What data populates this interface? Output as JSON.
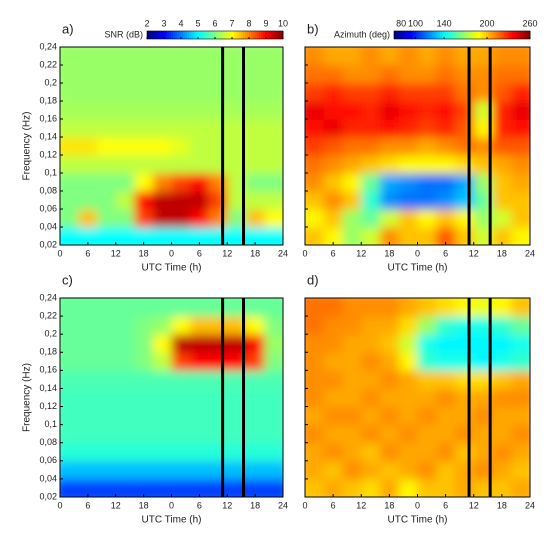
{
  "chart_data": [
    {
      "type": "heatmap",
      "panel": "a)",
      "xlabel": "UTC Time (h)",
      "ylabel": "Frequency (Hz)",
      "colorbar_label": "SNR (dB)",
      "cmap": "jet",
      "clim": [
        2,
        10
      ],
      "colorbar_ticks": [
        2,
        3,
        4,
        5,
        6,
        7,
        8,
        9,
        10
      ],
      "xlim": [
        0,
        48
      ],
      "ylim": [
        0.02,
        0.24
      ],
      "xticks": [
        0,
        6,
        12,
        18,
        {
          "value": 24,
          "label": "0"
        },
        {
          "value": 30,
          "label": "6"
        },
        {
          "value": 36,
          "label": "12"
        },
        {
          "value": 42,
          "label": "18"
        },
        {
          "value": 48,
          "label": "24"
        }
      ],
      "yticks": [
        {
          "value": 0.02,
          "label": "0,02"
        },
        {
          "value": 0.04,
          "label": "0,04"
        },
        {
          "value": 0.06,
          "label": "0,06"
        },
        {
          "value": 0.08,
          "label": "0,08"
        },
        {
          "value": 0.1,
          "label": "0,1"
        },
        {
          "value": 0.12,
          "label": "0,12"
        },
        {
          "value": 0.14,
          "label": "0,14"
        },
        {
          "value": 0.16,
          "label": "0,16"
        },
        {
          "value": 0.18,
          "label": "0,18"
        },
        {
          "value": 0.2,
          "label": "0,2"
        },
        {
          "value": 0.22,
          "label": "0,22"
        },
        {
          "value": 0.24,
          "label": "0,24"
        }
      ],
      "vlines": [
        35,
        39.5
      ],
      "x": [
        2,
        6,
        10,
        14,
        18,
        22,
        26,
        30,
        34,
        38,
        42,
        46
      ],
      "y": [
        0.03,
        0.05,
        0.07,
        0.09,
        0.11,
        0.13,
        0.15,
        0.17,
        0.19,
        0.21,
        0.23
      ],
      "z": [
        [
          5,
          5,
          5,
          5,
          5,
          5,
          5,
          5,
          5,
          5,
          5,
          5
        ],
        [
          6,
          7.5,
          6,
          6,
          8.5,
          9.5,
          9.5,
          9,
          8,
          6,
          7.5,
          7
        ],
        [
          6,
          6,
          6,
          6.5,
          9,
          9.5,
          9.5,
          9.5,
          8.5,
          6.5,
          6.5,
          6.5
        ],
        [
          6,
          6,
          6,
          6,
          7,
          8,
          8.5,
          9,
          8,
          6.5,
          6,
          6
        ],
        [
          6.5,
          6.5,
          6.5,
          6.5,
          6.5,
          6.5,
          6.5,
          6.5,
          6.5,
          6.5,
          6.5,
          6.5
        ],
        [
          7.2,
          7.2,
          7,
          7,
          7,
          7,
          6.8,
          6.5,
          6.5,
          6.5,
          6.5,
          6.5
        ],
        [
          6.5,
          6.5,
          6.5,
          6.5,
          6.5,
          6.5,
          6.5,
          6.5,
          6.5,
          6.5,
          6.5,
          6.5
        ],
        [
          6.3,
          6.3,
          6.3,
          6.3,
          6.3,
          6.3,
          6.3,
          6.3,
          6.3,
          6.3,
          6.3,
          6.3
        ],
        [
          6.2,
          6.2,
          6.2,
          6.2,
          6.2,
          6.2,
          6.2,
          6.2,
          6.2,
          6.2,
          6.2,
          6.2
        ],
        [
          6.2,
          6.2,
          6.2,
          6.2,
          6.2,
          6.2,
          6.2,
          6.2,
          6.2,
          6.2,
          6.2,
          6.2
        ],
        [
          6.2,
          6.2,
          6.2,
          6.2,
          6.2,
          6.2,
          6.2,
          6.2,
          6.2,
          6.2,
          6.2,
          6.2
        ]
      ]
    },
    {
      "type": "heatmap",
      "panel": "b)",
      "xlabel": "UTC Time (h)",
      "colorbar_label": "Azimuth (deg)",
      "cmap": "jet",
      "clim": [
        70,
        260
      ],
      "colorbar_ticks": [
        80,
        100,
        140,
        200,
        260
      ],
      "xlim": [
        0,
        48
      ],
      "ylim": [
        0.02,
        0.24
      ],
      "xticks": [
        0,
        6,
        12,
        18,
        {
          "value": 24,
          "label": "0"
        },
        {
          "value": 30,
          "label": "6"
        },
        {
          "value": 36,
          "label": "12"
        },
        {
          "value": 42,
          "label": "18"
        },
        {
          "value": 48,
          "label": "24"
        }
      ],
      "yticks": [
        0.02,
        0.04,
        0.06,
        0.08,
        0.1,
        0.12,
        0.14,
        0.16,
        0.18,
        0.2,
        0.22,
        0.24
      ],
      "vlines": [
        35,
        39.5
      ],
      "x": [
        2,
        6,
        10,
        14,
        18,
        22,
        26,
        30,
        34,
        38,
        42,
        46
      ],
      "y": [
        0.03,
        0.05,
        0.07,
        0.09,
        0.11,
        0.13,
        0.15,
        0.17,
        0.19,
        0.21,
        0.23
      ],
      "z": [
        [
          200,
          190,
          170,
          180,
          210,
          200,
          200,
          220,
          200,
          180,
          200,
          190
        ],
        [
          190,
          200,
          170,
          160,
          180,
          200,
          190,
          200,
          190,
          170,
          180,
          200
        ],
        [
          200,
          210,
          200,
          150,
          120,
          115,
          115,
          120,
          130,
          160,
          200,
          200
        ],
        [
          210,
          200,
          190,
          160,
          125,
          120,
          115,
          115,
          125,
          170,
          200,
          205
        ],
        [
          215,
          210,
          205,
          200,
          195,
          190,
          190,
          190,
          195,
          200,
          205,
          210
        ],
        [
          225,
          220,
          215,
          215,
          210,
          210,
          205,
          210,
          215,
          210,
          220,
          220
        ],
        [
          235,
          240,
          230,
          230,
          235,
          230,
          225,
          230,
          220,
          190,
          230,
          235
        ],
        [
          240,
          235,
          235,
          230,
          240,
          235,
          230,
          235,
          225,
          180,
          230,
          240
        ],
        [
          225,
          230,
          225,
          225,
          230,
          225,
          225,
          225,
          215,
          210,
          220,
          230
        ],
        [
          215,
          215,
          210,
          210,
          215,
          210,
          210,
          215,
          210,
          210,
          215,
          215
        ],
        [
          210,
          205,
          205,
          210,
          205,
          210,
          205,
          210,
          205,
          205,
          210,
          210
        ]
      ]
    },
    {
      "type": "heatmap",
      "panel": "c)",
      "xlabel": "UTC Time (h)",
      "ylabel": "Frequency (Hz)",
      "cmap": "jet",
      "clim": [
        2,
        10
      ],
      "xlim": [
        0,
        48
      ],
      "ylim": [
        0.02,
        0.24
      ],
      "xticks": [
        0,
        6,
        12,
        18,
        {
          "value": 24,
          "label": "0"
        },
        {
          "value": 30,
          "label": "6"
        },
        {
          "value": 36,
          "label": "12"
        },
        {
          "value": 42,
          "label": "18"
        },
        {
          "value": 48,
          "label": "24"
        }
      ],
      "yticks": [
        {
          "value": 0.02,
          "label": "0,02"
        },
        {
          "value": 0.04,
          "label": "0,04"
        },
        {
          "value": 0.06,
          "label": "0,06"
        },
        {
          "value": 0.08,
          "label": "0,08"
        },
        {
          "value": 0.1,
          "label": "0,1"
        },
        {
          "value": 0.12,
          "label": "0,12"
        },
        {
          "value": 0.14,
          "label": "0,14"
        },
        {
          "value": 0.16,
          "label": "0,16"
        },
        {
          "value": 0.18,
          "label": "0,18"
        },
        {
          "value": 0.2,
          "label": "0,2"
        },
        {
          "value": 0.22,
          "label": "0,22"
        },
        {
          "value": 0.24,
          "label": "0,24"
        }
      ],
      "vlines": [
        35,
        39.5
      ],
      "x": [
        2,
        6,
        10,
        14,
        18,
        22,
        26,
        30,
        34,
        38,
        42,
        46
      ],
      "y": [
        0.03,
        0.05,
        0.07,
        0.09,
        0.11,
        0.13,
        0.15,
        0.17,
        0.19,
        0.21,
        0.23
      ],
      "z": [
        [
          3.5,
          3.5,
          3.5,
          3.5,
          3.5,
          3.5,
          3.5,
          3.5,
          3.5,
          3.5,
          3.5,
          3.5
        ],
        [
          4.5,
          4.5,
          4.5,
          4.5,
          4.5,
          4.5,
          4.5,
          4.5,
          4.5,
          4.5,
          4.5,
          4.5
        ],
        [
          5.3,
          5.3,
          5.3,
          5.3,
          5.3,
          5.3,
          5.3,
          5.3,
          5.3,
          5.3,
          5.3,
          5.3
        ],
        [
          5.5,
          5.5,
          5.5,
          5.5,
          5.5,
          5.5,
          5.5,
          5.5,
          5.5,
          5.5,
          5.5,
          5.5
        ],
        [
          5.5,
          5.5,
          5.5,
          5.5,
          5.5,
          5.5,
          5.5,
          5.5,
          5.5,
          5.5,
          5.5,
          5.5
        ],
        [
          5.5,
          5.5,
          5.5,
          5.5,
          5.5,
          5.5,
          5.5,
          5.5,
          5.5,
          5.5,
          5.5,
          5.5
        ],
        [
          5.6,
          5.6,
          5.6,
          5.6,
          5.6,
          5.6,
          5.6,
          5.6,
          5.6,
          5.6,
          5.6,
          5.6
        ],
        [
          5.8,
          5.8,
          5.8,
          5.8,
          6,
          6.5,
          8.5,
          9,
          9,
          9,
          8.5,
          6
        ],
        [
          5.8,
          5.8,
          5.8,
          5.8,
          6,
          7,
          9.5,
          9.5,
          9.5,
          9.5,
          9,
          6.2
        ],
        [
          5.8,
          5.8,
          5.8,
          5.8,
          6,
          6.2,
          7,
          7.5,
          7.5,
          7.5,
          7,
          6
        ],
        [
          5.8,
          5.8,
          5.8,
          5.8,
          5.8,
          5.8,
          5.8,
          5.8,
          5.8,
          5.8,
          5.8,
          5.8
        ]
      ]
    },
    {
      "type": "heatmap",
      "panel": "d)",
      "xlabel": "UTC Time (h)",
      "cmap": "jet",
      "clim": [
        70,
        260
      ],
      "xlim": [
        0,
        48
      ],
      "ylim": [
        0.02,
        0.24
      ],
      "xticks": [
        0,
        6,
        12,
        18,
        {
          "value": 24,
          "label": "0"
        },
        {
          "value": 30,
          "label": "6"
        },
        {
          "value": 36,
          "label": "12"
        },
        {
          "value": 42,
          "label": "18"
        },
        {
          "value": 48,
          "label": "24"
        }
      ],
      "yticks": [
        0.02,
        0.04,
        0.06,
        0.08,
        0.1,
        0.12,
        0.14,
        0.16,
        0.18,
        0.2,
        0.22,
        0.24
      ],
      "vlines": [
        35,
        39.5
      ],
      "x": [
        2,
        6,
        10,
        14,
        18,
        22,
        26,
        30,
        34,
        38,
        42,
        46
      ],
      "y": [
        0.03,
        0.05,
        0.07,
        0.09,
        0.11,
        0.13,
        0.15,
        0.17,
        0.19,
        0.21,
        0.23
      ],
      "z": [
        [
          200,
          205,
          200,
          195,
          205,
          190,
          200,
          200,
          205,
          200,
          200,
          205
        ],
        [
          205,
          200,
          210,
          205,
          200,
          205,
          210,
          200,
          205,
          210,
          205,
          200
        ],
        [
          205,
          210,
          205,
          200,
          210,
          205,
          205,
          210,
          200,
          205,
          210,
          205
        ],
        [
          210,
          205,
          205,
          210,
          205,
          210,
          205,
          205,
          210,
          205,
          205,
          210
        ],
        [
          205,
          210,
          210,
          205,
          210,
          205,
          210,
          205,
          205,
          210,
          205,
          205
        ],
        [
          210,
          205,
          205,
          210,
          205,
          205,
          205,
          210,
          205,
          205,
          210,
          210
        ],
        [
          210,
          210,
          205,
          205,
          210,
          205,
          200,
          200,
          195,
          195,
          200,
          205
        ],
        [
          210,
          205,
          205,
          210,
          205,
          190,
          150,
          145,
          145,
          140,
          145,
          150
        ],
        [
          210,
          210,
          205,
          205,
          200,
          180,
          145,
          140,
          140,
          140,
          140,
          145
        ],
        [
          215,
          210,
          210,
          205,
          205,
          195,
          170,
          150,
          145,
          145,
          150,
          160
        ],
        [
          215,
          215,
          210,
          210,
          210,
          205,
          200,
          195,
          190,
          185,
          190,
          200
        ]
      ]
    }
  ]
}
